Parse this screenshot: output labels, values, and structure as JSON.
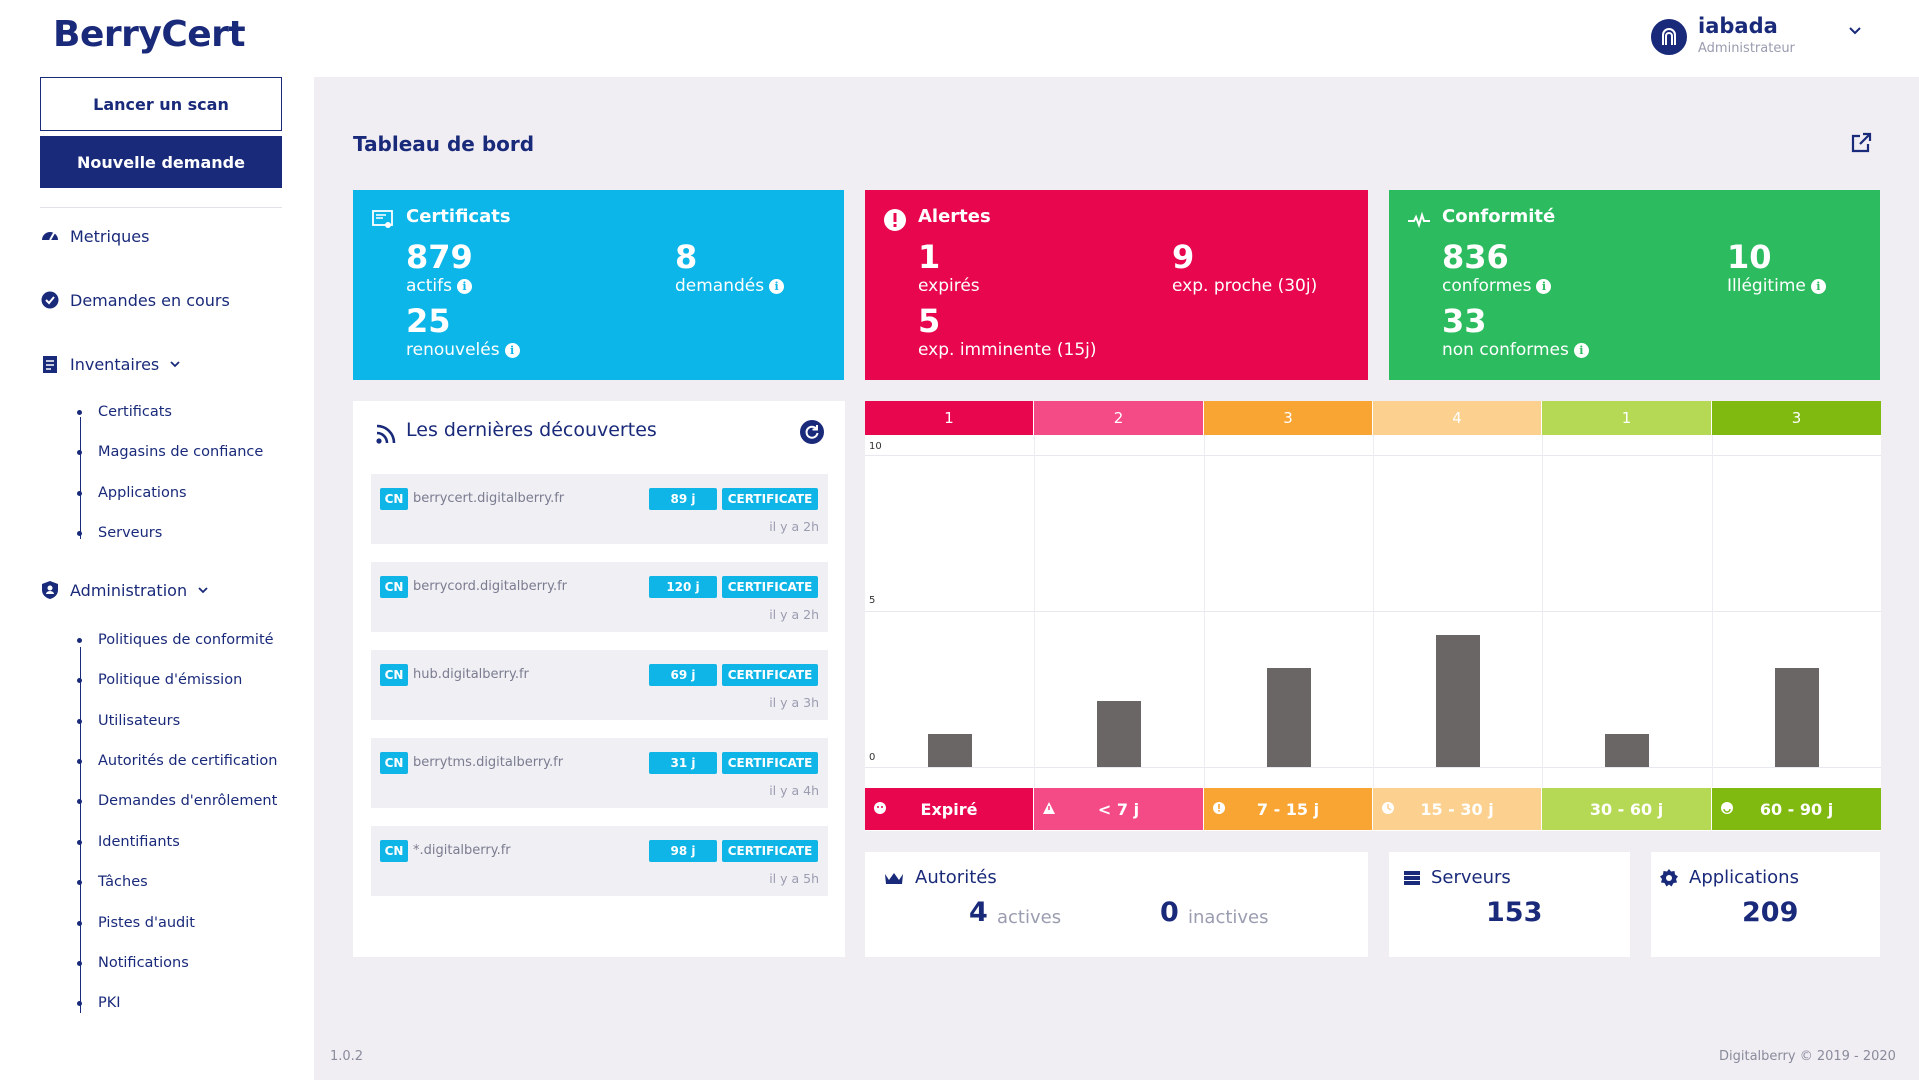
{
  "app": {
    "logo": "BerryCert",
    "version": "1.0.2",
    "copyright": "Digitalberry © 2019 - 2020"
  },
  "user": {
    "name": "iabada",
    "role": "Administrateur"
  },
  "sidebar": {
    "scan_button": "Lancer un scan",
    "new_request_button": "Nouvelle demande",
    "main_items": [
      "Metriques",
      "Demandes en cours",
      "Inventaires",
      "Administration"
    ],
    "inventory_items": [
      "Certificats",
      "Magasins de confiance",
      "Applications",
      "Serveurs"
    ],
    "admin_items": [
      "Politiques de conformité",
      "Politique d'émission",
      "Utilisateurs",
      "Autorités de certification",
      "Demandes d'enrôlement",
      "Identifiants",
      "Tâches",
      "Pistes d'audit",
      "Notifications",
      "PKI"
    ]
  },
  "page": {
    "title": "Tableau de bord"
  },
  "cards": {
    "certificats": {
      "title": "Certificats",
      "color": "#0cb6e8",
      "v1": "879",
      "l1": "actifs",
      "v2": "8",
      "l2": "demandés",
      "v3": "25",
      "l3": "renouvelés"
    },
    "alertes": {
      "title": "Alertes",
      "color": "#e8064f",
      "v1": "1",
      "l1": "expirés",
      "v2": "9",
      "l2": "exp. proche (30j)",
      "v3": "5",
      "l3": "exp. imminente (15j)"
    },
    "conformite": {
      "title": "Conformité",
      "color": "#2cbc5f",
      "v1": "836",
      "l1": "conformes",
      "v2": "10",
      "l2": "Illégitime",
      "v3": "33",
      "l3": "non conformes"
    }
  },
  "discoveries": {
    "title": "Les dernières découvertes",
    "items": [
      {
        "cn": "CN",
        "host": "berrycert.digitalberry.fr",
        "days": "89 j",
        "type": "CERTIFICATE",
        "ago": "il y a 2h"
      },
      {
        "cn": "CN",
        "host": "berrycord.digitalberry.fr",
        "days": "120 j",
        "type": "CERTIFICATE",
        "ago": "il y a 2h"
      },
      {
        "cn": "CN",
        "host": "hub.digitalberry.fr",
        "days": "69 j",
        "type": "CERTIFICATE",
        "ago": "il y a 3h"
      },
      {
        "cn": "CN",
        "host": "berrytms.digitalberry.fr",
        "days": "31 j",
        "type": "CERTIFICATE",
        "ago": "il y a 4h"
      },
      {
        "cn": "CN",
        "host": "*.digitalberry.fr",
        "days": "98 j",
        "type": "CERTIFICATE",
        "ago": "il y a 5h"
      }
    ]
  },
  "chart_data": {
    "type": "bar",
    "categories": [
      "Expiré",
      "< 7 j",
      "7 - 15 j",
      "15 - 30 j",
      "30 - 60 j",
      "60 - 90 j"
    ],
    "values": [
      1,
      2,
      3,
      4,
      1,
      3
    ],
    "header_labels": [
      "1",
      "2",
      "3",
      "4",
      "1",
      "3"
    ],
    "category_colors": [
      "#e8064f",
      "#f44a86",
      "#f9a533",
      "#fcd08f",
      "#b5d955",
      "#80b90f"
    ],
    "yticks": [
      "10",
      "5",
      "0"
    ],
    "ylim": [
      0,
      10
    ]
  },
  "bottom": {
    "autorites": {
      "title": "Autorités",
      "active_num": "4",
      "active_lbl": "actives",
      "inactive_num": "0",
      "inactive_lbl": "inactives"
    },
    "serveurs": {
      "title": "Serveurs",
      "count": "153"
    },
    "applications": {
      "title": "Applications",
      "count": "209"
    }
  }
}
